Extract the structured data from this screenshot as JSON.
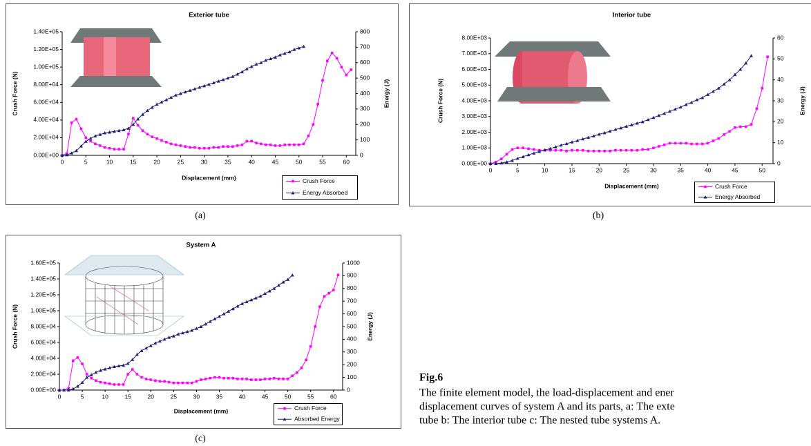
{
  "chart_data": [
    {
      "type": "line",
      "title": "Exterior tube",
      "panel_label": "(a)",
      "xlabel": "Displacement (mm)",
      "ylabel": "Crush Force (N)",
      "y2label": "Energy (J)",
      "x": [
        0,
        1,
        2,
        3,
        4,
        5,
        6,
        7,
        8,
        9,
        10,
        11,
        12,
        13,
        14,
        15,
        16,
        17,
        18,
        19,
        20,
        21,
        22,
        23,
        24,
        25,
        26,
        27,
        28,
        29,
        30,
        31,
        32,
        33,
        34,
        35,
        36,
        37,
        38,
        39,
        40,
        41,
        42,
        43,
        44,
        45,
        46,
        47,
        48,
        49,
        50,
        51,
        52,
        53,
        54,
        55,
        56,
        57,
        58,
        59,
        60,
        61
      ],
      "xlim": [
        0,
        62
      ],
      "xticks": [
        0,
        5,
        10,
        15,
        20,
        25,
        30,
        35,
        40,
        45,
        50,
        55,
        60
      ],
      "ylim": [
        0,
        140000
      ],
      "yticks": [
        {
          "value": 0,
          "label": "0.00E+00"
        },
        {
          "value": 20000,
          "label": "2.00E+04"
        },
        {
          "value": 40000,
          "label": "4.00E+04"
        },
        {
          "value": 60000,
          "label": "6.00E+04"
        },
        {
          "value": 80000,
          "label": "8.00E+04"
        },
        {
          "value": 100000,
          "label": "1.00E+05"
        },
        {
          "value": 120000,
          "label": "1.20E+05"
        },
        {
          "value": 140000,
          "label": "1.40E+05"
        }
      ],
      "y2lim": [
        0,
        800
      ],
      "y2ticks": [
        0,
        100,
        200,
        300,
        400,
        500,
        600,
        700,
        800
      ],
      "series": [
        {
          "name": "Crush Force",
          "color": "#ff00ff",
          "marker": "square",
          "axis": "y",
          "values": [
            0,
            2000,
            37000,
            41000,
            30000,
            20000,
            16000,
            13000,
            11000,
            9000,
            8000,
            7000,
            7000,
            7000,
            24000,
            42000,
            34000,
            28000,
            24000,
            21000,
            19000,
            17000,
            15000,
            13000,
            12000,
            11000,
            10000,
            9000,
            9000,
            8000,
            8000,
            8000,
            9000,
            9000,
            10000,
            10000,
            10000,
            11000,
            12000,
            16000,
            16000,
            14000,
            13000,
            12000,
            12000,
            11000,
            11000,
            12000,
            12000,
            12000,
            12000,
            13000,
            22000,
            35000,
            58000,
            85000,
            107000,
            116000,
            110000,
            100000,
            91000,
            97000
          ]
        },
        {
          "name": "Energy Absorbed",
          "color": "#1f1f7a",
          "marker": "triangle",
          "axis": "y2",
          "values": [
            0,
            3,
            15,
            30,
            60,
            90,
            110,
            125,
            135,
            145,
            150,
            155,
            160,
            165,
            175,
            200,
            235,
            265,
            290,
            310,
            330,
            345,
            360,
            375,
            390,
            400,
            410,
            420,
            430,
            440,
            450,
            460,
            470,
            480,
            490,
            500,
            510,
            525,
            540,
            560,
            575,
            590,
            600,
            615,
            625,
            635,
            650,
            660,
            670,
            685,
            695,
            705,
            null,
            null,
            null,
            null,
            null,
            null,
            null,
            null,
            null,
            null
          ]
        }
      ]
    },
    {
      "type": "line",
      "title": "Interior tube",
      "panel_label": "(b)",
      "xlabel": "Displacement (mm)",
      "ylabel": "Crush Force (N)",
      "y2label": "Energy (J)",
      "x": [
        0,
        1,
        2,
        3,
        4,
        5,
        6,
        7,
        8,
        9,
        10,
        11,
        12,
        13,
        14,
        15,
        16,
        17,
        18,
        19,
        20,
        21,
        22,
        23,
        24,
        25,
        26,
        27,
        28,
        29,
        30,
        31,
        32,
        33,
        34,
        35,
        36,
        37,
        38,
        39,
        40,
        41,
        42,
        43,
        44,
        45,
        46,
        47,
        48,
        49,
        50,
        51
      ],
      "xlim": [
        0,
        52
      ],
      "xticks": [
        0,
        5,
        10,
        15,
        20,
        25,
        30,
        35,
        40,
        45,
        50
      ],
      "ylim": [
        0,
        8000
      ],
      "yticks": [
        {
          "value": 0,
          "label": "0.00E+00"
        },
        {
          "value": 1000,
          "label": "1.00E+03"
        },
        {
          "value": 2000,
          "label": "2.00E+03"
        },
        {
          "value": 3000,
          "label": "3.00E+03"
        },
        {
          "value": 4000,
          "label": "4.00E+03"
        },
        {
          "value": 5000,
          "label": "5.00E+03"
        },
        {
          "value": 6000,
          "label": "6.00E+03"
        },
        {
          "value": 7000,
          "label": "7.00E+03"
        },
        {
          "value": 8000,
          "label": "8.00E+03"
        }
      ],
      "y2lim": [
        0,
        60
      ],
      "y2ticks": [
        0,
        10,
        20,
        30,
        40,
        50,
        60
      ],
      "series": [
        {
          "name": "Crush Force",
          "color": "#ff00ff",
          "marker": "square",
          "axis": "y",
          "values": [
            0,
            100,
            300,
            600,
            900,
            1000,
            1000,
            950,
            900,
            850,
            850,
            850,
            850,
            850,
            800,
            850,
            850,
            850,
            800,
            800,
            800,
            800,
            800,
            850,
            850,
            850,
            850,
            850,
            900,
            900,
            1000,
            1100,
            1200,
            1300,
            1300,
            1300,
            1300,
            1250,
            1250,
            1250,
            1300,
            1450,
            1600,
            1850,
            2050,
            2300,
            2350,
            2350,
            2500,
            3500,
            4800,
            6800
          ]
        },
        {
          "name": "Energy Absorbed",
          "color": "#1f1f7a",
          "marker": "triangle",
          "axis": "y2",
          "values": [
            0,
            0,
            0.3,
            0.8,
            1.5,
            2.5,
            3.3,
            4.2,
            5,
            5.8,
            6.5,
            7.2,
            8,
            8.8,
            9.5,
            10.3,
            11,
            11.8,
            12.5,
            13.2,
            14,
            14.7,
            15.5,
            16.3,
            17,
            17.8,
            18.5,
            19.3,
            20,
            21,
            22,
            23,
            24,
            25,
            26,
            27,
            28.2,
            29.2,
            30.5,
            31.5,
            33,
            34.5,
            36,
            38,
            40,
            42.5,
            45,
            48,
            51.5,
            null,
            null,
            null
          ]
        }
      ]
    },
    {
      "type": "line",
      "title": "System A",
      "panel_label": "(c)",
      "xlabel": "Displacement (mm)",
      "ylabel": "Crush Force (N)",
      "y2label": "Energy (J)",
      "x": [
        0,
        1,
        2,
        3,
        4,
        5,
        6,
        7,
        8,
        9,
        10,
        11,
        12,
        13,
        14,
        15,
        16,
        17,
        18,
        19,
        20,
        21,
        22,
        23,
        24,
        25,
        26,
        27,
        28,
        29,
        30,
        31,
        32,
        33,
        34,
        35,
        36,
        37,
        38,
        39,
        40,
        41,
        42,
        43,
        44,
        45,
        46,
        47,
        48,
        49,
        50,
        51,
        52,
        53,
        54,
        55,
        56,
        57,
        58,
        59,
        60,
        61
      ],
      "xlim": [
        0,
        62
      ],
      "xticks": [
        0,
        5,
        10,
        15,
        20,
        25,
        30,
        35,
        40,
        45,
        50,
        55,
        60
      ],
      "ylim": [
        0,
        160000
      ],
      "yticks": [
        {
          "value": 0,
          "label": "0.00E+00"
        },
        {
          "value": 20000,
          "label": "2.00E+04"
        },
        {
          "value": 40000,
          "label": "4.00E+04"
        },
        {
          "value": 60000,
          "label": "6.00E+04"
        },
        {
          "value": 80000,
          "label": "8.00E+04"
        },
        {
          "value": 100000,
          "label": "1.00E+05"
        },
        {
          "value": 120000,
          "label": "1.20E+05"
        },
        {
          "value": 140000,
          "label": "1.40E+05"
        },
        {
          "value": 160000,
          "label": "1.60E+05"
        }
      ],
      "y2lim": [
        0,
        1000
      ],
      "y2ticks": [
        0,
        100,
        200,
        300,
        400,
        500,
        600,
        700,
        800,
        900,
        1000
      ],
      "series": [
        {
          "name": "Crush Force",
          "color": "#ff00ff",
          "marker": "square",
          "axis": "y",
          "values": [
            0,
            0,
            2000,
            37000,
            41000,
            33000,
            20000,
            15000,
            12000,
            10000,
            9000,
            8000,
            7000,
            7000,
            7000,
            20000,
            26000,
            20000,
            16000,
            14000,
            13000,
            12000,
            11000,
            11000,
            10000,
            9000,
            9000,
            9000,
            9000,
            9000,
            11000,
            13000,
            14000,
            15000,
            16000,
            16000,
            15000,
            15000,
            15000,
            14000,
            14000,
            14000,
            13000,
            13000,
            13000,
            14000,
            14000,
            15000,
            14000,
            14000,
            14000,
            18000,
            22000,
            28000,
            38000,
            55000,
            80000,
            105000,
            118000,
            122000,
            126000,
            145000
          ]
        },
        {
          "name": "Absorbed Energy",
          "color": "#1f1f7a",
          "marker": "triangle",
          "axis": "y2",
          "values": [
            0,
            0,
            0,
            10,
            30,
            60,
            100,
            120,
            140,
            155,
            165,
            175,
            185,
            190,
            195,
            210,
            240,
            280,
            310,
            330,
            350,
            370,
            385,
            400,
            415,
            425,
            440,
            450,
            460,
            470,
            485,
            500,
            520,
            540,
            560,
            580,
            600,
            620,
            640,
            660,
            680,
            695,
            710,
            725,
            740,
            760,
            780,
            800,
            825,
            850,
            870,
            905,
            null,
            null,
            null,
            null,
            null,
            null,
            null,
            null,
            null,
            null
          ]
        }
      ]
    }
  ],
  "caption": {
    "title": "Fig.6",
    "lines": [
      "The finite element model, the load-displacement and ener",
      "displacement curves of system A and its parts, a: The exte",
      "tube b: The interior tube c: The nested tube systems A."
    ]
  }
}
